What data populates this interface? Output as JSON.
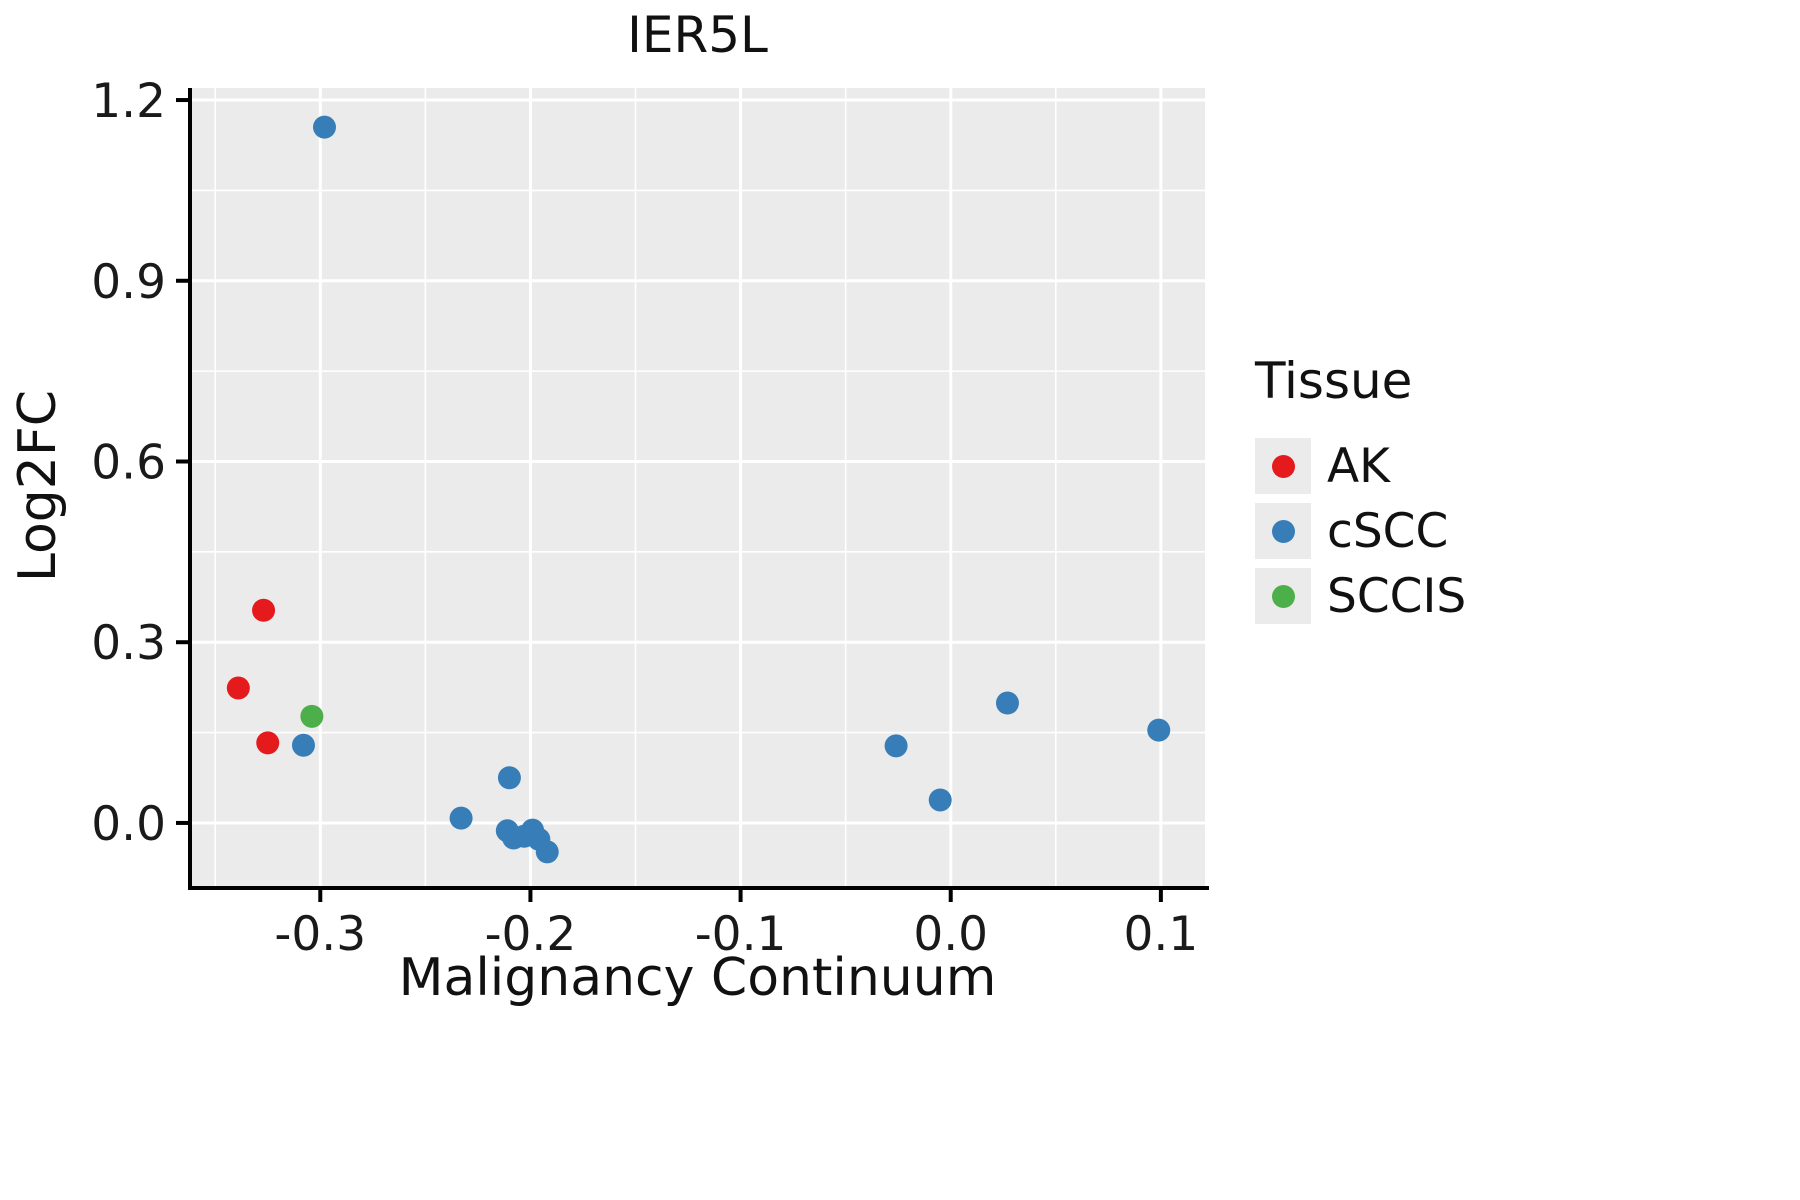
{
  "chart_data": {
    "type": "scatter",
    "title": "IER5L",
    "xlabel": "Malignancy Continuum",
    "ylabel": "Log2FC",
    "legend_title": "Tissue",
    "legend_position": "right",
    "grid": "white major and minor gridlines on gray panel",
    "panel_bg": "#EBEBEB",
    "axis_color": "#000000",
    "xlim": [
      -0.362,
      0.121
    ],
    "ylim": [
      -0.108,
      1.22
    ],
    "x_ticks": {
      "values": [
        -0.3,
        -0.2,
        -0.1,
        0.0,
        0.1
      ],
      "labels": [
        "-0.3",
        "-0.2",
        "-0.1",
        "0.0",
        "0.1"
      ]
    },
    "y_ticks": {
      "values": [
        0.0,
        0.3,
        0.6,
        0.9,
        1.2
      ],
      "labels": [
        "0.0",
        "0.3",
        "0.6",
        "0.9",
        "1.2"
      ]
    },
    "series": [
      {
        "name": "AK",
        "color": "#E41A1C",
        "points": [
          [
            -0.339,
            0.224
          ],
          [
            -0.327,
            0.353
          ],
          [
            -0.325,
            0.133
          ]
        ]
      },
      {
        "name": "cSCC",
        "color": "#377EB8",
        "points": [
          [
            -0.298,
            1.155
          ],
          [
            -0.308,
            0.129
          ],
          [
            -0.233,
            0.008
          ],
          [
            -0.21,
            0.075
          ],
          [
            -0.211,
            -0.013
          ],
          [
            -0.208,
            -0.025
          ],
          [
            -0.203,
            -0.022
          ],
          [
            -0.199,
            -0.012
          ],
          [
            -0.196,
            -0.027
          ],
          [
            -0.192,
            -0.048
          ],
          [
            -0.026,
            0.128
          ],
          [
            -0.005,
            0.038
          ],
          [
            0.027,
            0.199
          ],
          [
            0.099,
            0.154
          ]
        ]
      },
      {
        "name": "SCCIS",
        "color": "#4DAF4A",
        "points": [
          [
            -0.304,
            0.177
          ]
        ]
      }
    ]
  }
}
